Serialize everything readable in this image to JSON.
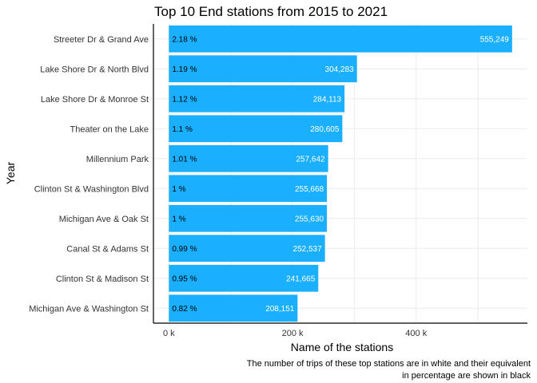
{
  "chart_data": {
    "type": "bar",
    "orientation": "horizontal",
    "title": "Top 10 End stations from 2015 to 2021",
    "xlabel": "Name of the stations",
    "ylabel": "Year",
    "caption_lines": [
      "The number of trips of these top stations are in white and their equivalent",
      "in percentage are shown in black"
    ],
    "categories": [
      "Streeter Dr & Grand Ave",
      "Lake Shore Dr & North Blvd",
      "Lake Shore Dr & Monroe St",
      "Theater on the Lake",
      "Millennium Park",
      "Clinton St & Washington Blvd",
      "Michigan Ave & Oak St",
      "Canal St & Adams St",
      "Clinton St & Madison St",
      "Michigan Ave & Washington St"
    ],
    "values": [
      555249,
      304283,
      284113,
      280605,
      257642,
      255668,
      255630,
      252537,
      241665,
      208151
    ],
    "value_labels": [
      "555,249",
      "304,283",
      "284,113",
      "280,605",
      "257,642",
      "255,668",
      "255,630",
      "252,537",
      "241,665",
      "208,151"
    ],
    "percent_labels": [
      "2.18 %",
      "1.19 %",
      "1.12 %",
      "1.1 %",
      "1.01 %",
      "1 %",
      "1 %",
      "0.99 %",
      "0.95 %",
      "0.82 %"
    ],
    "xticks": [
      0,
      200000,
      400000
    ],
    "xtick_labels": [
      "0 k",
      "200 k",
      "400 k"
    ],
    "xlim": [
      -25000,
      580000
    ],
    "bar_color": "#1aafff",
    "grid": true
  }
}
